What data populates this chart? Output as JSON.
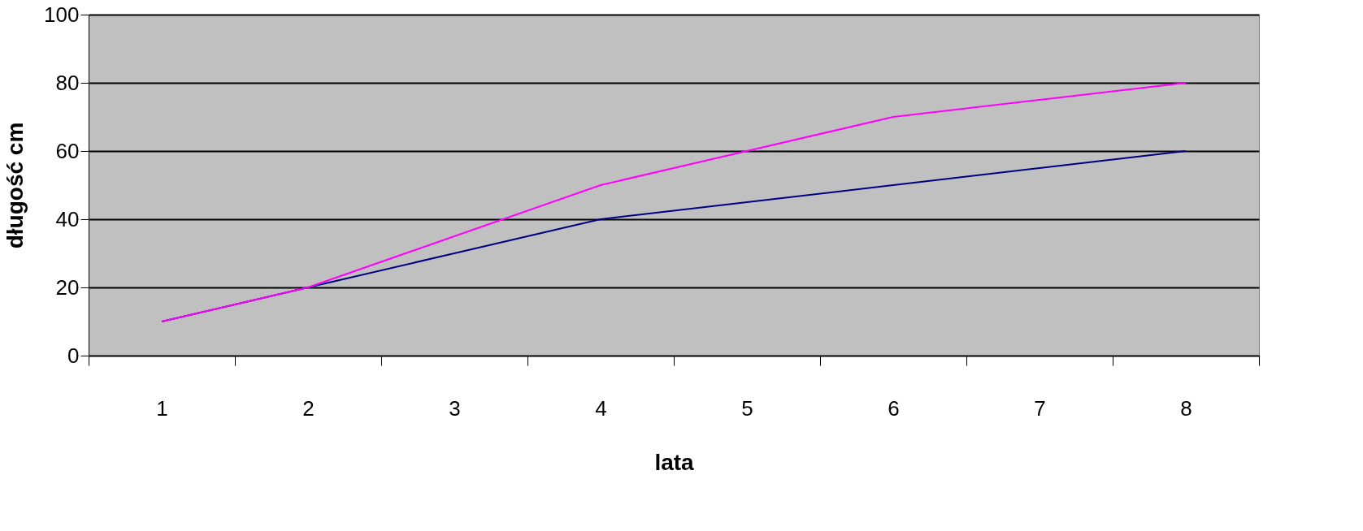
{
  "chart_data": {
    "type": "line",
    "xlabel": "lata",
    "ylabel": "długość cm",
    "categories": [
      "1",
      "2",
      "3",
      "4",
      "5",
      "6",
      "7",
      "8"
    ],
    "series": [
      {
        "color": "#000080",
        "values": [
          10,
          20,
          30,
          40,
          45,
          50,
          55,
          60
        ]
      },
      {
        "color": "#ff00ff",
        "values": [
          10,
          20,
          35,
          50,
          60,
          70,
          75,
          80
        ]
      }
    ],
    "ylim": [
      0,
      100
    ],
    "yticks": [
      0,
      20,
      40,
      60,
      80,
      100
    ],
    "grid": "y",
    "legend": false
  }
}
